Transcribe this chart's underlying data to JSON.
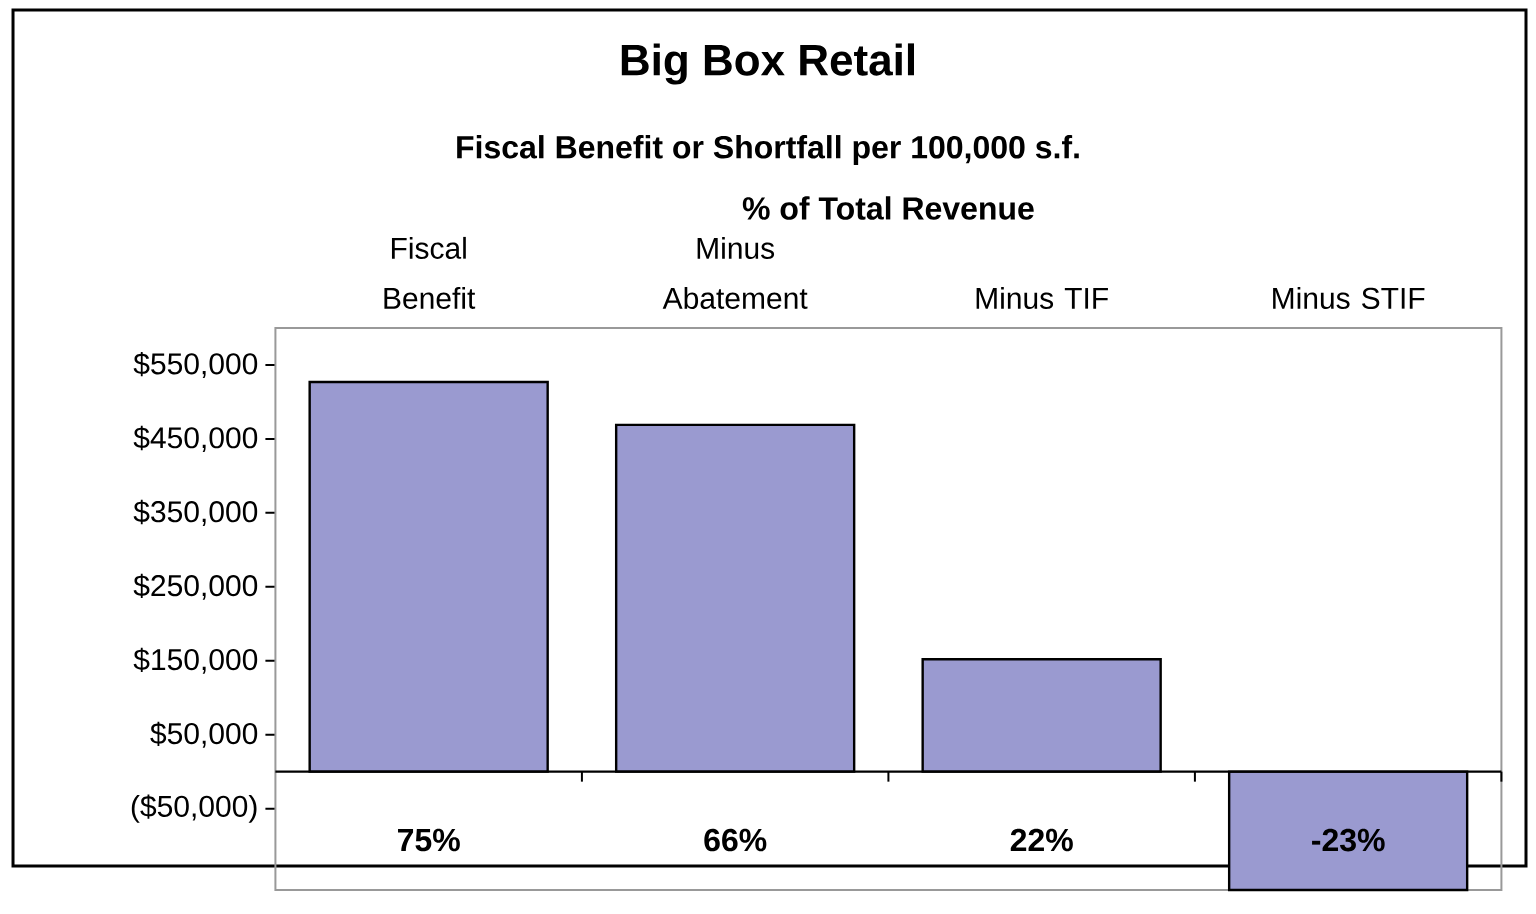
{
  "chart_data": {
    "type": "bar",
    "title": "Big Box Retail",
    "subtitle": "Fiscal Benefit or Shortfall per 100,000 s.f.",
    "categories": [
      "Fiscal Benefit",
      "Minus Abatement",
      "Minus TIF",
      "Minus STIF"
    ],
    "values": [
      527000,
      469000,
      152000,
      -160000
    ],
    "color": "#9a9ad0",
    "ylim": [
      -160000,
      600000
    ],
    "yticks": [
      {
        "value": -50000,
        "label": "($50,000)"
      },
      {
        "value": 50000,
        "label": "$50,000"
      },
      {
        "value": 150000,
        "label": "$150,000"
      },
      {
        "value": 250000,
        "label": "$250,000"
      },
      {
        "value": 350000,
        "label": "$350,000"
      },
      {
        "value": 450000,
        "label": "$450,000"
      },
      {
        "value": 550000,
        "label": "$550,000"
      }
    ],
    "annotations": [
      "% of Total Revenue",
      "75%",
      "66%",
      "22%",
      "-23%"
    ],
    "grid": false
  }
}
